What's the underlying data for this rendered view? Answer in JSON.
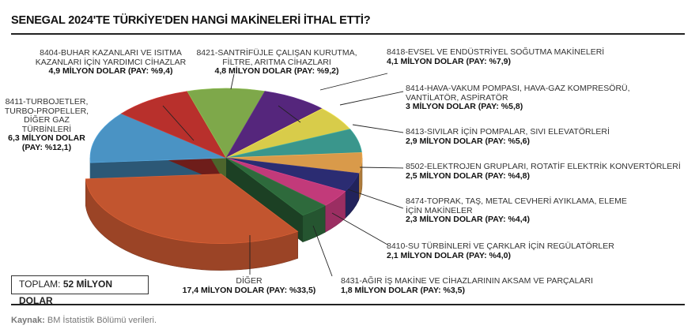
{
  "title": "SENEGAL 2024'TE TÜRKİYE'DEN HANGİ MAKİNELERİ İTHAL ETTİ?",
  "total": {
    "label": "TOPLAM:",
    "value": "52 MİLYON DOLAR"
  },
  "source": {
    "label": "Kaynak:",
    "text": "BM İstatistik Bölümü verileri."
  },
  "chart_data": {
    "type": "pie",
    "title": "SENEGAL 2024'TE TÜRKİYE'DEN HANGİ MAKİNELERİ İTHAL ETTİ?",
    "unit": "milyon dolar",
    "slices": [
      {
        "name": "8411-TURBOJETLER, TURBO-PROPELLER, DİĞER GAZ TÜRBİNLERİ",
        "value": 6.3,
        "share": 12.1,
        "color": "#4a93c4",
        "value_text": "6,3 MİLYON DOLAR",
        "share_text": "(PAY: %12,1)"
      },
      {
        "name": "8404-BUHAR KAZANLARI VE ISITMA KAZANLARI İÇİN YARDIMCI CİHAZLAR",
        "value": 4.9,
        "share": 9.4,
        "color": "#b8302c",
        "value_text": "4,9 MİLYON DOLAR (PAY: %9,4)"
      },
      {
        "name": "8421-SANTRİFÜJLE ÇALIŞAN KURUTMA, FİLTRE, ARITMA CİHAZLARI",
        "value": 4.8,
        "share": 9.2,
        "color": "#7ea84a",
        "value_text": "4,8 MİLYON DOLAR (PAY: %9,2)"
      },
      {
        "name": "8418-EVSEL VE ENDÜSTRİYEL SOĞUTMA MAKİNELERİ",
        "value": 4.1,
        "share": 7.9,
        "color": "#55267c",
        "value_text": "4,1 MİLYON DOLAR (PAY: %7,9)"
      },
      {
        "name": "8414-HAVA-VAKUM POMPASI, HAVA-GAZ KOMPRESÖRÜ, VANTİLATÖR, ASPİRATÖR",
        "value": 3,
        "share": 5.8,
        "color": "#d8cc4a",
        "value_text": "3 MİLYON DOLAR (PAY: %5,8)"
      },
      {
        "name": "8413-SIVILAR İÇİN POMPALAR, SIVI ELEVATÖRLERİ",
        "value": 2.9,
        "share": 5.6,
        "color": "#3a968c",
        "value_text": "2,9 MİLYON DOLAR (PAY: %5,6)"
      },
      {
        "name": "8502-ELEKTROJEN GRUPLARI, ROTATİF ELEKTRİK KONVERTÖRLERİ",
        "value": 2.5,
        "share": 4.8,
        "color": "#d99a4a",
        "value_text": "2,5 MİLYON DOLAR (PAY: %4,8)"
      },
      {
        "name": "8474-TOPRAK, TAŞ, METAL CEVHERİ AYIKLAMA, ELEME İÇİN MAKİNELER",
        "value": 2.3,
        "share": 4.4,
        "color": "#2b2c72",
        "value_text": "2,3 MİLYON DOLAR (PAY: %4,4)"
      },
      {
        "name": "8410-SU TÜRBİNLERİ VE ÇARKLAR İÇİN REGÜLATÖRLER",
        "value": 2.1,
        "share": 4.0,
        "color": "#c23a7a",
        "value_text": "2,1 MİLYON DOLAR (PAY: %4,0)"
      },
      {
        "name": "8431-AĞIR İŞ MAKİNE VE CİHAZLARININ AKSAM VE PARÇALARI",
        "value": 1.8,
        "share": 3.5,
        "color": "#2e6a3c",
        "value_text": "1,8 MİLYON DOLAR (PAY: %3,5)"
      },
      {
        "name": "DİĞER",
        "value": 17.4,
        "share": 33.5,
        "color": "#c2552f",
        "value_text": "17,4 MİLYON DOLAR (PAY: %33,5)",
        "exploded": true
      }
    ]
  }
}
